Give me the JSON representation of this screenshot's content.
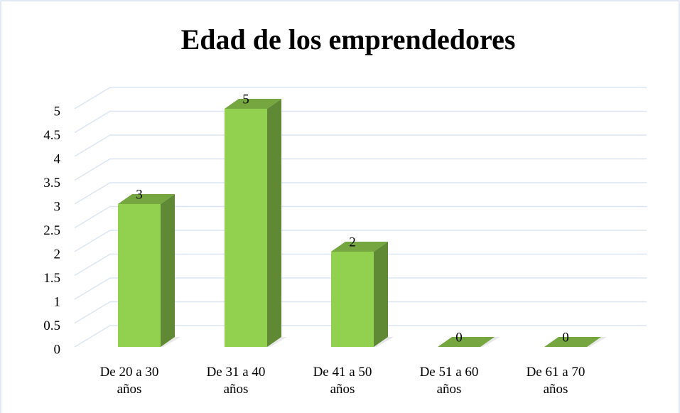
{
  "chart_data": {
    "type": "bar",
    "title": "Edad de los emprendedores",
    "categories": [
      "De 20 a 30 años",
      "De 31 a 40 años",
      "De 41 a 50 años",
      "De 51 a 60 años",
      "De 61 a 70 años"
    ],
    "values": [
      3,
      5,
      2,
      0,
      0
    ],
    "color": "#92d050",
    "ylim": [
      0,
      5
    ],
    "yticks": [
      0,
      0.5,
      1,
      1.5,
      2,
      2.5,
      3,
      3.5,
      4,
      4.5,
      5
    ],
    "grid": true
  }
}
